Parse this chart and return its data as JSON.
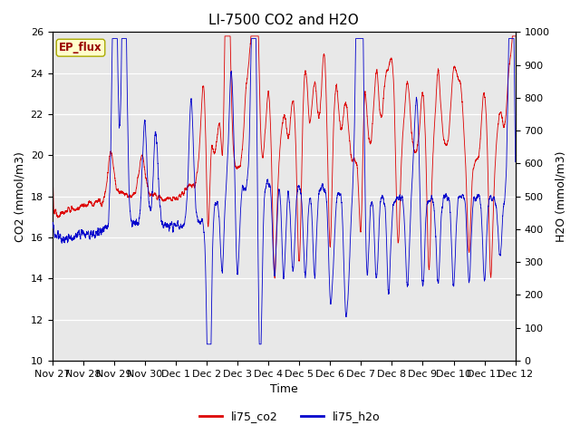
{
  "title": "LI-7500 CO2 and H2O",
  "xlabel": "Time",
  "ylabel_left": "CO2 (mmol/m3)",
  "ylabel_right": "H2O (mmol/m3)",
  "ylim_left": [
    10,
    26
  ],
  "ylim_right": [
    0,
    1000
  ],
  "yticks_left": [
    10,
    12,
    14,
    16,
    18,
    20,
    22,
    24,
    26
  ],
  "yticks_right": [
    0,
    100,
    200,
    300,
    400,
    500,
    600,
    700,
    800,
    900,
    1000
  ],
  "background_color": "#e8e8e8",
  "fig_background": "#ffffff",
  "co2_color": "#dd0000",
  "h2o_color": "#0000cc",
  "legend_box_facecolor": "#ffffcc",
  "legend_box_edge": "#aaaa00",
  "annotation_text": "EP_flux",
  "annotation_color": "#990000",
  "title_fontsize": 11,
  "axis_label_fontsize": 9,
  "tick_fontsize": 8,
  "legend_fontsize": 9,
  "xtick_labels": [
    "Nov 27",
    "Nov 28",
    "Nov 29",
    "Nov 30",
    "Dec 1",
    "Dec 2",
    "Dec 3",
    "Dec 4",
    "Dec 5",
    "Dec 6",
    "Dec 7",
    "Dec 8",
    "Dec 9",
    "Dec 10",
    "Dec 11",
    "Dec 12"
  ],
  "xtick_positions": [
    0,
    1,
    2,
    3,
    4,
    5,
    6,
    7,
    8,
    9,
    10,
    11,
    12,
    13,
    14,
    15
  ]
}
